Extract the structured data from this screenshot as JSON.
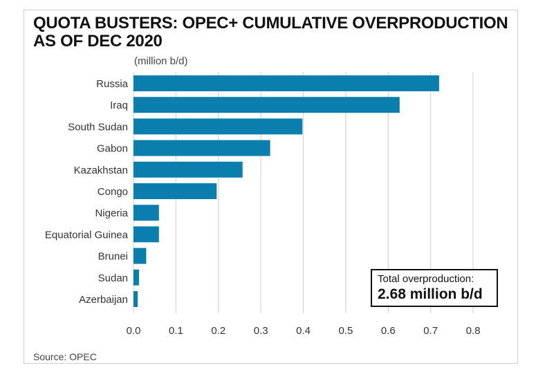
{
  "title_line1": "QUOTA BUSTERS: OPEC+ CUMULATIVE OVERPRODUCTION",
  "title_line2": "AS OF DEC 2020",
  "unit_label": "(million b/d)",
  "source": "Source: OPEC",
  "callout": {
    "label": "Total overproduction:",
    "value": "2.68 million b/d"
  },
  "colors": {
    "bar": "#0a7fae",
    "grid": "#d4d4d4",
    "text": "#333333"
  },
  "chart_data": {
    "type": "bar",
    "orientation": "horizontal",
    "categories": [
      "Russia",
      "Iraq",
      "South Sudan",
      "Gabon",
      "Kazakhstan",
      "Congo",
      "Nigeria",
      "Equatorial Guinea",
      "Brunei",
      "Sudan",
      "Azerbaijan"
    ],
    "values": [
      0.72,
      0.627,
      0.398,
      0.322,
      0.257,
      0.196,
      0.06,
      0.06,
      0.03,
      0.013,
      0.01
    ],
    "xlim": [
      0,
      0.8
    ],
    "xticks": [
      "0.0",
      "0.1",
      "0.2",
      "0.3",
      "0.4",
      "0.5",
      "0.6",
      "0.7",
      "0.8"
    ],
    "grid": "vertical"
  }
}
